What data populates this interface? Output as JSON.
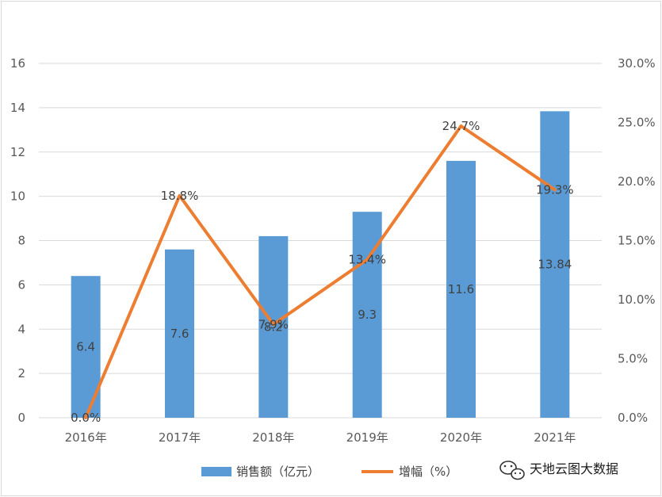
{
  "chart_data": {
    "type": "bar+line",
    "categories": [
      "2016年",
      "2017年",
      "2018年",
      "2019年",
      "2020年",
      "2021年"
    ],
    "bar_series": {
      "name": "销售额（亿元）",
      "values": [
        6.4,
        7.6,
        8.2,
        9.3,
        11.6,
        13.84
      ],
      "labels": [
        "6.4",
        "7.6",
        "8.2",
        "9.3",
        "11.6",
        "13.84"
      ],
      "color": "#5b9bd5"
    },
    "line_series": {
      "name": "增幅（%）",
      "values": [
        0.0,
        18.8,
        7.9,
        13.4,
        24.7,
        19.3
      ],
      "labels": [
        "0.0%",
        "18.8%",
        "7.9%",
        "13.4%",
        "24.7%",
        "19.3%"
      ],
      "color": "#ed7d31"
    },
    "y_left": {
      "min": 0,
      "max": 16,
      "ticks": [
        "0",
        "2",
        "4",
        "6",
        "8",
        "10",
        "12",
        "14",
        "16"
      ]
    },
    "y_right": {
      "min": 0,
      "max": 30,
      "ticks": [
        "0.0%",
        "5.0%",
        "10.0%",
        "15.0%",
        "20.0%",
        "25.0%",
        "30.0%"
      ]
    },
    "grid": true,
    "legend_position": "bottom"
  },
  "watermark": {
    "text": "天地云图大数据",
    "icon": "wechat-icon"
  }
}
